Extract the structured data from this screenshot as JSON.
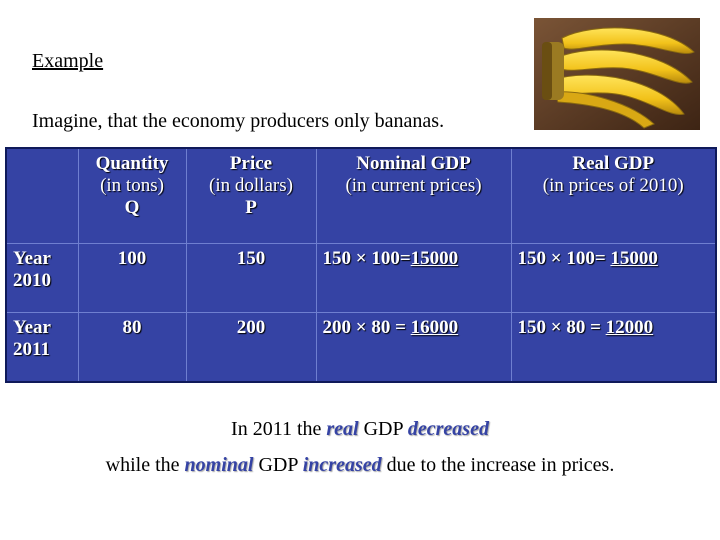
{
  "heading": "Example",
  "intro": "Imagine, that the economy producers only bananas.",
  "image": {
    "name": "bananas"
  },
  "table": {
    "headers": [
      {
        "title": "",
        "sub": "",
        "symbol": ""
      },
      {
        "title": "Quantity",
        "sub": "(in tons)",
        "symbol": "Q"
      },
      {
        "title": "Price",
        "sub": "(in dollars)",
        "symbol": "P"
      },
      {
        "title": "Nominal GDP",
        "sub": "(in current prices)",
        "symbol": ""
      },
      {
        "title": "Real GDP",
        "sub": "(in prices of 2010)",
        "symbol": ""
      }
    ],
    "rows": [
      {
        "year_word": "Year",
        "year": "2010",
        "quantity": "100",
        "price": "150",
        "nominal_calc": "150 × 100=",
        "nominal_value": "15000",
        "real_calc": "150 × 100= ",
        "real_value": "15000"
      },
      {
        "year_word": "Year",
        "year": "2011",
        "quantity": "80",
        "price": "200",
        "nominal_calc": "200 × 80 = ",
        "nominal_value": "16000",
        "real_calc": "150 × 80 = ",
        "real_value": "12000"
      }
    ]
  },
  "conclusion": {
    "line1_a": "In 2011 the ",
    "line1_real": "real",
    "line1_b": " GDP ",
    "line1_decreased": "decreased",
    "line2_a": "while the ",
    "line2_nominal": "nominal",
    "line2_b": " GDP ",
    "line2_increased": "increased",
    "line2_c": " due to the increase in prices."
  },
  "colors": {
    "table_bg": "#3543a4",
    "emphasis": "#3543a4"
  }
}
